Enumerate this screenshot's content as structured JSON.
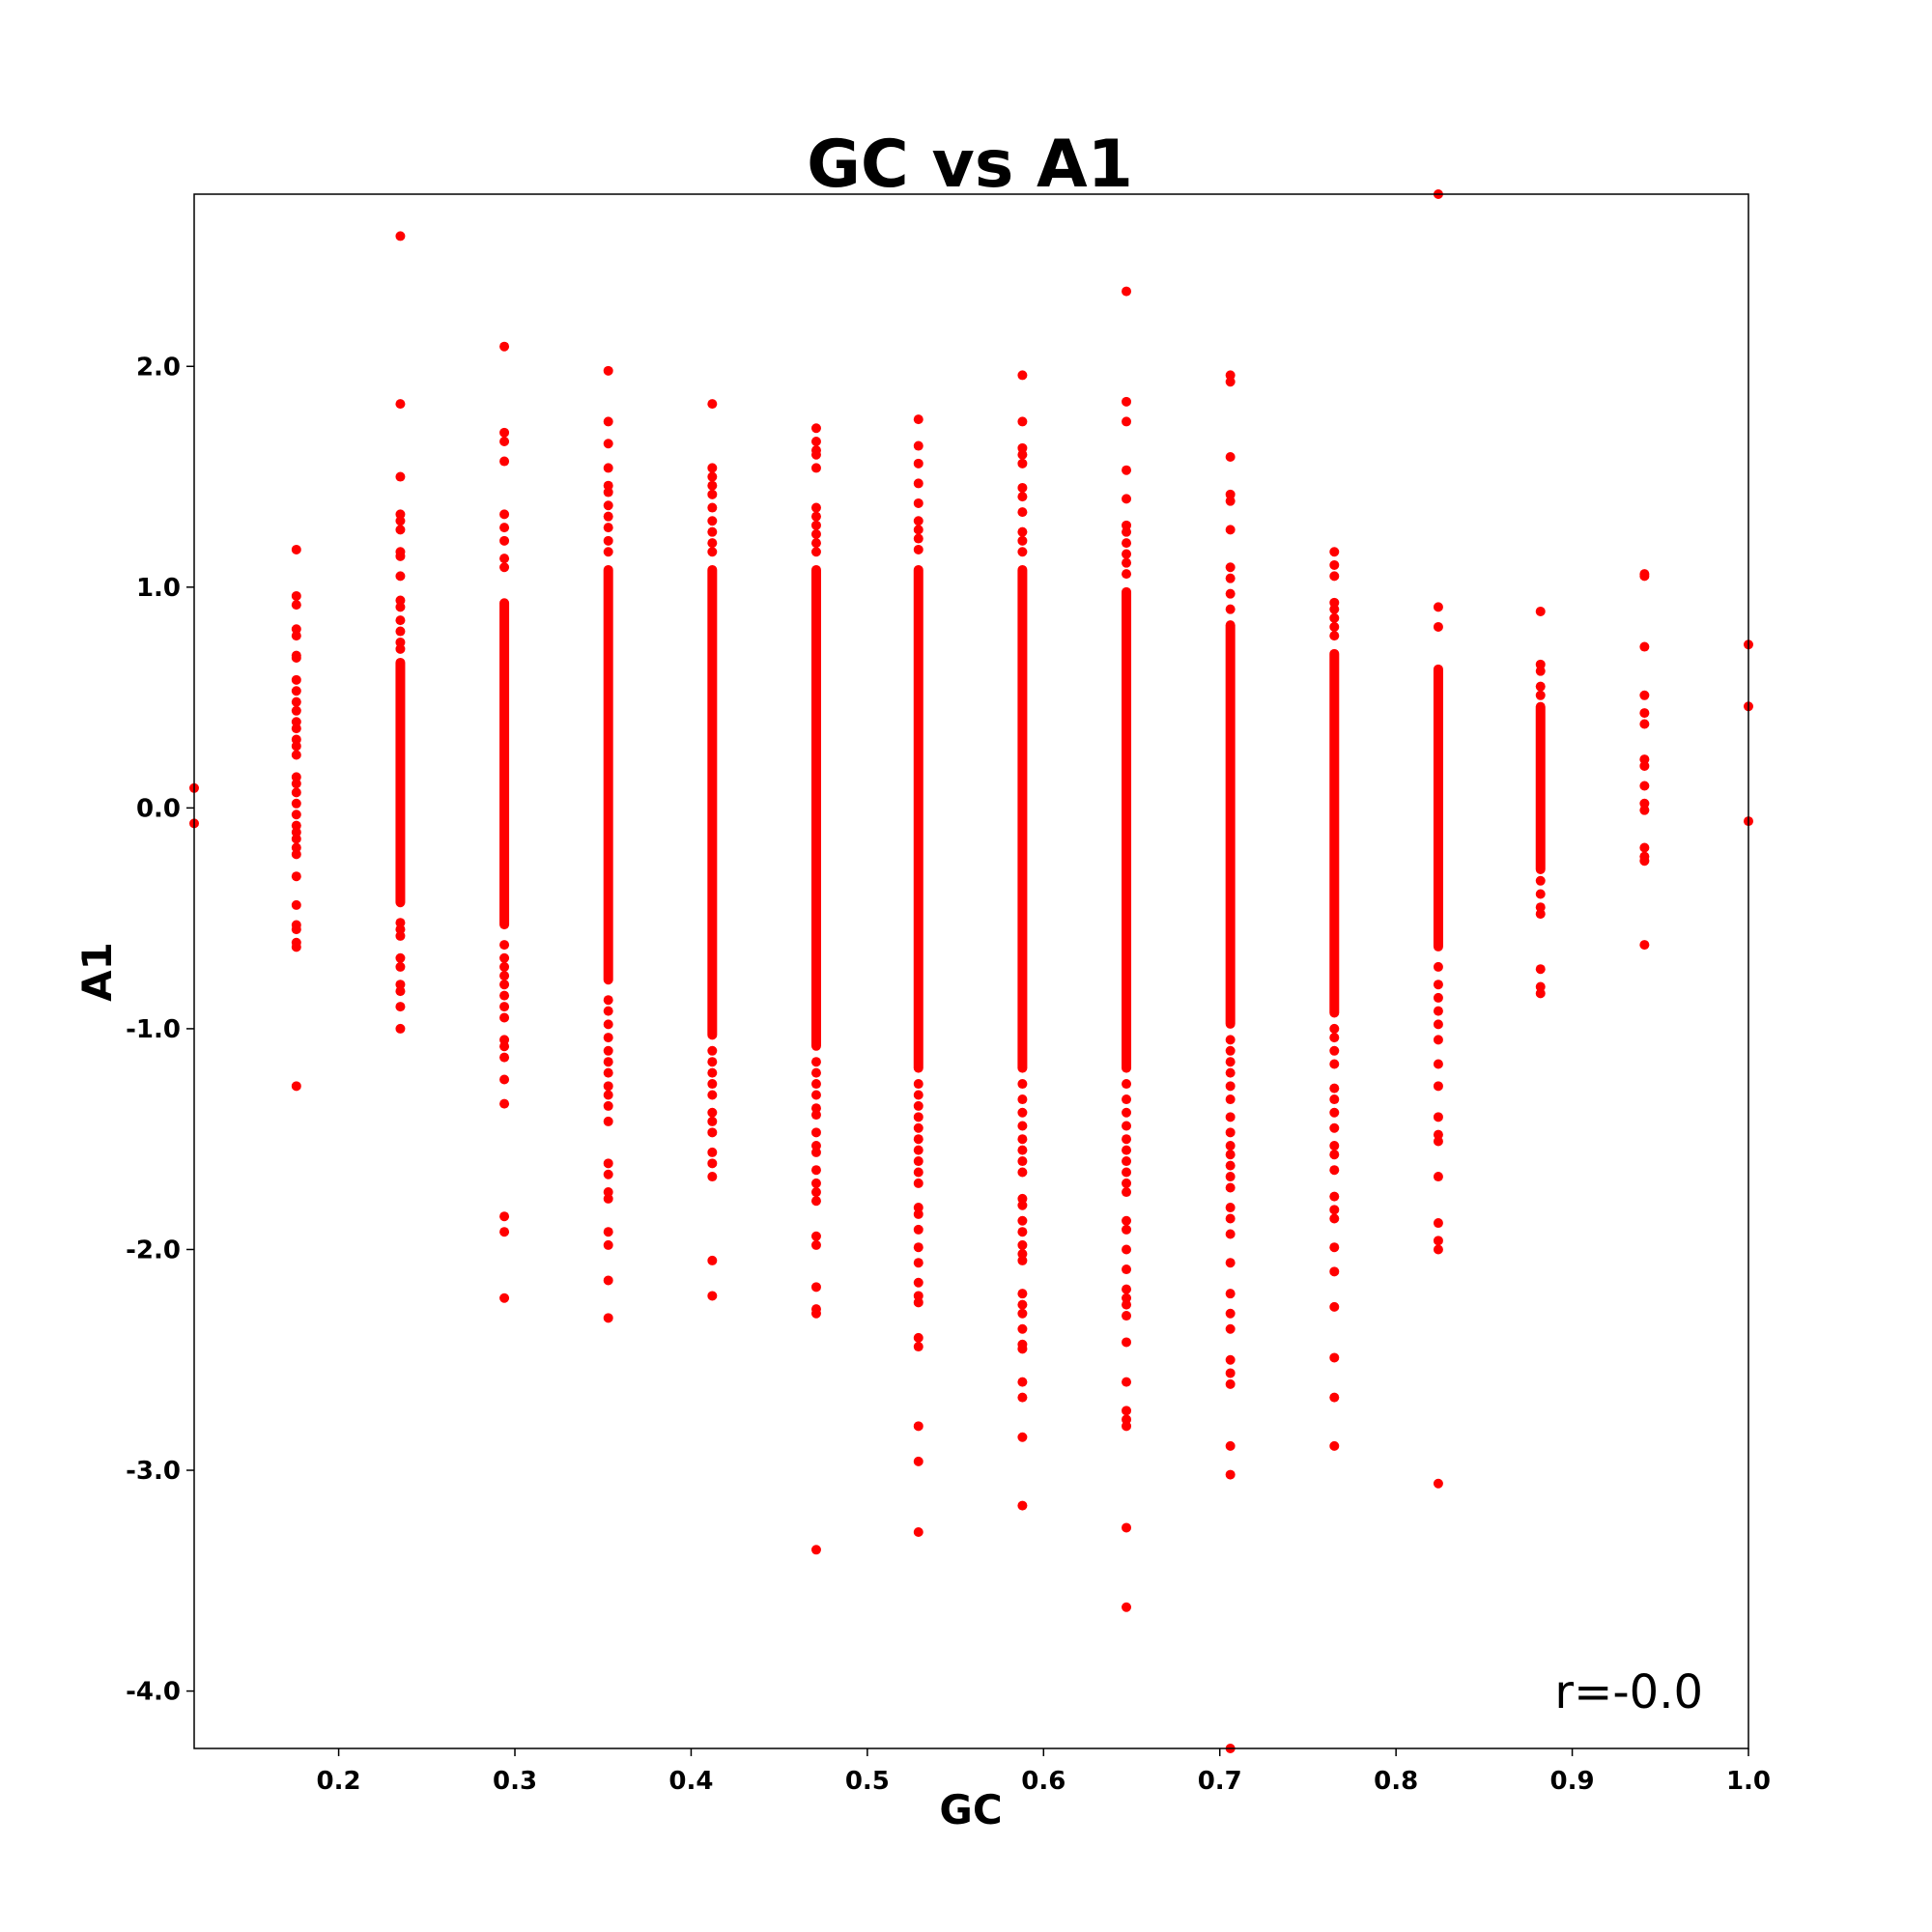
{
  "chart_data": {
    "type": "scatter",
    "title": "GC vs A1",
    "xlabel": "GC",
    "ylabel": "A1",
    "xlim": [
      0.118,
      1.0
    ],
    "ylim": [
      -4.26,
      2.78
    ],
    "xticks": [
      0.2,
      0.3,
      0.4,
      0.5,
      0.6,
      0.7,
      0.8,
      0.9,
      1.0
    ],
    "xtick_labels": [
      "0.2",
      "0.3",
      "0.4",
      "0.5",
      "0.6",
      "0.7",
      "0.8",
      "0.9",
      "1.0"
    ],
    "yticks": [
      2.0,
      1.0,
      0.0,
      -1.0,
      -2.0,
      -3.0,
      -4.0
    ],
    "ytick_labels": [
      "2.0",
      "1.0",
      "0.0",
      "-1.0",
      "-2.0",
      "-3.0",
      "-4.0"
    ],
    "annotation": "r=-0.0",
    "point_color": "#ff0000",
    "grid": false,
    "legend": "none",
    "columns": [
      {
        "x": 0.118,
        "dense": [],
        "points": [
          0.09,
          -0.07
        ]
      },
      {
        "x": 0.176,
        "dense": [],
        "points": [
          1.17,
          0.96,
          0.92,
          0.81,
          0.78,
          0.69,
          0.68,
          0.58,
          0.53,
          0.48,
          0.44,
          0.39,
          0.36,
          0.31,
          0.28,
          0.24,
          0.14,
          0.11,
          0.07,
          0.02,
          -0.03,
          -0.08,
          -0.11,
          -0.14,
          -0.18,
          -0.21,
          -0.31,
          -0.44,
          -0.53,
          -0.55,
          -0.61,
          -0.63,
          -1.26
        ]
      },
      {
        "x": 0.235,
        "dense": [
          -0.45,
          0.68
        ],
        "points": [
          2.59,
          1.83,
          1.5,
          1.33,
          1.3,
          1.26,
          1.16,
          1.14,
          1.05,
          0.94,
          0.91,
          0.85,
          0.8,
          0.75,
          0.72,
          -0.52,
          -0.55,
          -0.58,
          -0.68,
          -0.72,
          -0.8,
          -0.83,
          -0.9,
          -1.0
        ]
      },
      {
        "x": 0.294,
        "dense": [
          -0.55,
          0.95
        ],
        "points": [
          2.09,
          1.7,
          1.66,
          1.57,
          1.33,
          1.27,
          1.21,
          1.13,
          1.09,
          -0.62,
          -0.68,
          -0.72,
          -0.76,
          -0.8,
          -0.85,
          -0.9,
          -0.95,
          -1.05,
          -1.08,
          -1.13,
          -1.23,
          -1.34,
          -1.85,
          -1.92,
          -2.22
        ]
      },
      {
        "x": 0.353,
        "dense": [
          -0.8,
          1.1
        ],
        "points": [
          1.98,
          1.75,
          1.65,
          1.54,
          1.46,
          1.43,
          1.37,
          1.32,
          1.27,
          1.21,
          1.16,
          -0.87,
          -0.92,
          -0.98,
          -1.04,
          -1.1,
          -1.15,
          -1.2,
          -1.26,
          -1.3,
          -1.35,
          -1.42,
          -1.61,
          -1.66,
          -1.74,
          -1.77,
          -1.92,
          -1.98,
          -2.14,
          -2.31
        ]
      },
      {
        "x": 0.412,
        "dense": [
          -1.05,
          1.1
        ],
        "points": [
          1.83,
          1.54,
          1.5,
          1.46,
          1.42,
          1.36,
          1.3,
          1.25,
          1.2,
          1.16,
          -1.1,
          -1.15,
          -1.2,
          -1.25,
          -1.3,
          -1.38,
          -1.42,
          -1.47,
          -1.56,
          -1.61,
          -1.67,
          -2.05,
          -2.21
        ]
      },
      {
        "x": 0.471,
        "dense": [
          -1.1,
          1.1
        ],
        "points": [
          1.72,
          1.66,
          1.62,
          1.6,
          1.54,
          1.36,
          1.32,
          1.28,
          1.24,
          1.2,
          1.16,
          -1.15,
          -1.2,
          -1.25,
          -1.3,
          -1.36,
          -1.39,
          -1.47,
          -1.53,
          -1.56,
          -1.64,
          -1.7,
          -1.74,
          -1.78,
          -1.94,
          -1.98,
          -2.17,
          -2.27,
          -2.29,
          -3.36
        ]
      },
      {
        "x": 0.529,
        "dense": [
          -1.2,
          1.1
        ],
        "points": [
          1.76,
          1.64,
          1.56,
          1.47,
          1.38,
          1.3,
          1.26,
          1.22,
          1.17,
          -1.25,
          -1.3,
          -1.35,
          -1.4,
          -1.45,
          -1.5,
          -1.55,
          -1.6,
          -1.65,
          -1.7,
          -1.81,
          -1.84,
          -1.91,
          -1.99,
          -2.06,
          -2.15,
          -2.21,
          -2.24,
          -2.4,
          -2.44,
          -2.8,
          -2.96,
          -3.28
        ]
      },
      {
        "x": 0.588,
        "dense": [
          -1.2,
          1.1
        ],
        "points": [
          1.96,
          1.75,
          1.63,
          1.6,
          1.56,
          1.45,
          1.41,
          1.34,
          1.25,
          1.21,
          1.16,
          -1.25,
          -1.32,
          -1.38,
          -1.44,
          -1.5,
          -1.55,
          -1.6,
          -1.65,
          -1.77,
          -1.8,
          -1.87,
          -1.92,
          -1.98,
          -2.02,
          -2.05,
          -2.2,
          -2.25,
          -2.29,
          -2.36,
          -2.43,
          -2.45,
          -2.6,
          -2.67,
          -2.85,
          -3.16
        ]
      },
      {
        "x": 0.647,
        "dense": [
          -1.2,
          1.0
        ],
        "points": [
          2.34,
          1.84,
          1.75,
          1.53,
          1.4,
          1.28,
          1.25,
          1.2,
          1.15,
          1.11,
          1.06,
          -1.25,
          -1.32,
          -1.38,
          -1.44,
          -1.5,
          -1.55,
          -1.6,
          -1.65,
          -1.7,
          -1.74,
          -1.87,
          -1.91,
          -2.0,
          -2.09,
          -2.18,
          -2.22,
          -2.25,
          -2.3,
          -2.42,
          -2.6,
          -2.73,
          -2.77,
          -2.8,
          -3.26,
          -3.62
        ]
      },
      {
        "x": 0.706,
        "dense": [
          -1.0,
          0.85
        ],
        "points": [
          1.96,
          1.93,
          1.59,
          1.42,
          1.39,
          1.26,
          1.09,
          1.04,
          0.97,
          0.9,
          -1.05,
          -1.1,
          -1.15,
          -1.2,
          -1.26,
          -1.32,
          -1.4,
          -1.47,
          -1.53,
          -1.57,
          -1.62,
          -1.67,
          -1.72,
          -1.81,
          -1.86,
          -1.93,
          -2.06,
          -2.2,
          -2.29,
          -2.36,
          -2.5,
          -2.56,
          -2.61,
          -2.89,
          -3.02,
          -4.26
        ]
      },
      {
        "x": 0.765,
        "dense": [
          -0.95,
          0.72
        ],
        "points": [
          1.16,
          1.1,
          1.05,
          0.93,
          0.9,
          0.86,
          0.82,
          0.78,
          -1.0,
          -1.04,
          -1.1,
          -1.16,
          -1.27,
          -1.32,
          -1.38,
          -1.45,
          -1.53,
          -1.57,
          -1.64,
          -1.76,
          -1.82,
          -1.86,
          -1.99,
          -2.1,
          -2.26,
          -2.49,
          -2.67,
          -2.89
        ]
      },
      {
        "x": 0.824,
        "dense": [
          -0.65,
          0.65
        ],
        "points": [
          2.78,
          0.91,
          0.82,
          -0.72,
          -0.8,
          -0.86,
          -0.92,
          -0.98,
          -1.05,
          -1.16,
          -1.26,
          -1.4,
          -1.48,
          -1.51,
          -1.67,
          -1.88,
          -1.96,
          -2.0,
          -3.06
        ]
      },
      {
        "x": 0.882,
        "dense": [
          -0.3,
          0.48
        ],
        "points": [
          0.89,
          0.65,
          0.62,
          0.55,
          0.51,
          -0.33,
          -0.39,
          -0.45,
          -0.48,
          -0.73,
          -0.81,
          -0.84
        ]
      },
      {
        "x": 0.941,
        "dense": [],
        "points": [
          1.06,
          1.05,
          0.73,
          0.51,
          0.43,
          0.38,
          0.22,
          0.19,
          0.1,
          0.02,
          -0.01,
          -0.18,
          -0.22,
          -0.24,
          -0.62
        ]
      },
      {
        "x": 1.0,
        "dense": [],
        "points": [
          0.74,
          0.46,
          -0.06
        ]
      }
    ]
  }
}
